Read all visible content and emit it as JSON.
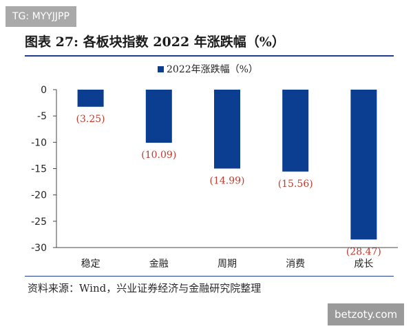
{
  "badge": {
    "text": "TG: MYYJJPP"
  },
  "title": "图表 27:  各板块指数 2022 年涨跌幅（%）",
  "source": "资料来源：Wind，兴业证券经济与金融研究院整理",
  "watermark": {
    "text": "betzoty.com"
  },
  "colors": {
    "bar": "#0b3d91",
    "data_label": "#c0392b",
    "rule": "#1f3c8f"
  },
  "chart_data": {
    "type": "bar",
    "categories": [
      "稳定",
      "金融",
      "周期",
      "消费",
      "成长"
    ],
    "series": [
      {
        "name": "2022年涨跌幅（%）",
        "values": [
          -3.25,
          -10.09,
          -14.99,
          -15.56,
          -28.47
        ]
      }
    ],
    "data_labels": [
      "(3.25)",
      "(10.09)",
      "(14.99)",
      "(15.56)",
      "(28.47)"
    ],
    "ylim": [
      -30,
      0
    ],
    "yticks": [
      0,
      -5,
      -10,
      -15,
      -20,
      -25,
      -30
    ],
    "ytick_labels": [
      "0",
      "-5",
      "-10",
      "-15",
      "-20",
      "-25",
      "-30"
    ],
    "legend_position": "top",
    "grid": false,
    "xlabel": "",
    "ylabel": ""
  }
}
